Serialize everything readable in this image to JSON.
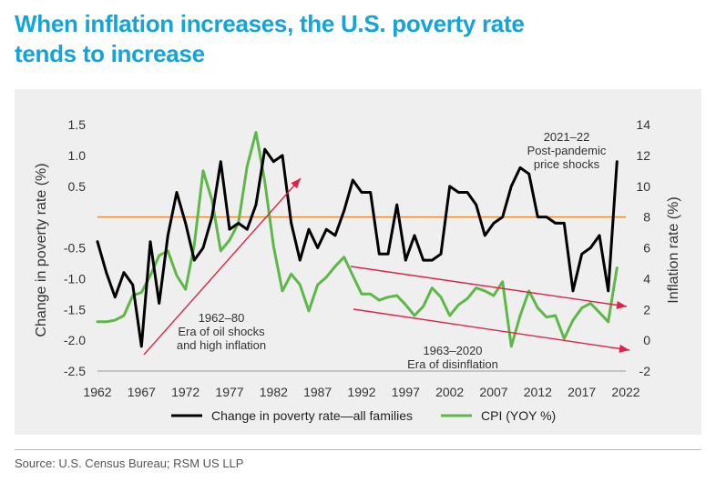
{
  "title_line1": "When inflation increases, the U.S. poverty rate",
  "title_line2": "tends to increase",
  "source": "Source: U.S. Census Bureau; RSM US LLP",
  "colors": {
    "title": "#12A4DB",
    "poverty": "#000000",
    "cpi": "#5DB847",
    "arrow": "#E0224A",
    "reference": "#F08A2C"
  },
  "chart_data": {
    "type": "line",
    "xlabel": "",
    "ylabel": "Change in poverty rate (%)",
    "y2label": "Inflation rate (%)",
    "xlim": [
      1962,
      2022
    ],
    "ylim": [
      -2.5,
      1.5
    ],
    "y2lim": [
      -2,
      14
    ],
    "xticks": [
      "1962",
      "1967",
      "1972",
      "1977",
      "1982",
      "1987",
      "1992",
      "1997",
      "2002",
      "2007",
      "2012",
      "2017",
      "2022"
    ],
    "yticks": [
      "1.5",
      "1.0",
      "0.5",
      "",
      "-0.5",
      "-1.0",
      "-1.5",
      "-2.0",
      "-2.5"
    ],
    "y2ticks": [
      "14",
      "12",
      "10",
      "8",
      "6",
      "4",
      "2",
      "0",
      "-2"
    ],
    "reference_line_y2": 8,
    "legend_position": "bottom",
    "series": [
      {
        "name": "Change in poverty rate—all families",
        "axis": "left",
        "x": [
          1962,
          1963,
          1964,
          1965,
          1966,
          1967,
          1968,
          1969,
          1970,
          1971,
          1972,
          1973,
          1974,
          1975,
          1976,
          1977,
          1978,
          1979,
          1980,
          1981,
          1982,
          1983,
          1984,
          1985,
          1986,
          1987,
          1988,
          1989,
          1990,
          1991,
          1992,
          1993,
          1994,
          1995,
          1996,
          1997,
          1998,
          1999,
          2000,
          2001,
          2002,
          2003,
          2004,
          2005,
          2006,
          2007,
          2008,
          2009,
          2010,
          2011,
          2012,
          2013,
          2014,
          2015,
          2016,
          2017,
          2018,
          2019,
          2020,
          2021
        ],
        "values": [
          -0.4,
          -0.9,
          -1.3,
          -0.9,
          -1.1,
          -2.1,
          -0.4,
          -1.4,
          -0.3,
          0.4,
          -0.1,
          -0.7,
          -0.5,
          0.0,
          0.9,
          -0.2,
          -0.1,
          -0.2,
          0.2,
          1.1,
          0.9,
          1.0,
          -0.1,
          -0.7,
          -0.2,
          -0.5,
          -0.2,
          -0.3,
          0.1,
          0.6,
          0.4,
          0.4,
          -0.6,
          -0.6,
          0.2,
          -0.7,
          -0.3,
          -0.7,
          -0.7,
          -0.6,
          0.5,
          0.4,
          0.4,
          0.2,
          -0.3,
          -0.1,
          0.0,
          0.5,
          0.8,
          0.7,
          0.0,
          0.0,
          -0.1,
          -0.1,
          -1.2,
          -0.6,
          -0.5,
          -0.3,
          -1.2,
          0.9
        ]
      },
      {
        "name": "CPI (YOY %)",
        "axis": "right",
        "x": [
          1962,
          1963,
          1964,
          1965,
          1966,
          1967,
          1968,
          1969,
          1970,
          1971,
          1972,
          1973,
          1974,
          1975,
          1976,
          1977,
          1978,
          1979,
          1980,
          1981,
          1982,
          1983,
          1984,
          1985,
          1986,
          1987,
          1988,
          1989,
          1990,
          1991,
          1992,
          1993,
          1994,
          1995,
          1996,
          1997,
          1998,
          1999,
          2000,
          2001,
          2002,
          2003,
          2004,
          2005,
          2006,
          2007,
          2008,
          2009,
          2010,
          2011,
          2012,
          2013,
          2014,
          2015,
          2016,
          2017,
          2018,
          2019,
          2020,
          2021
        ],
        "values": [
          1.2,
          1.2,
          1.3,
          1.6,
          2.9,
          3.1,
          4.2,
          5.5,
          5.8,
          4.2,
          3.3,
          6.2,
          11.0,
          9.1,
          5.8,
          6.5,
          7.6,
          11.3,
          13.5,
          10.3,
          6.1,
          3.2,
          4.3,
          3.6,
          1.9,
          3.6,
          4.1,
          4.8,
          5.4,
          4.2,
          3.0,
          3.0,
          2.6,
          2.8,
          2.9,
          2.3,
          1.6,
          2.2,
          3.4,
          2.8,
          1.6,
          2.3,
          2.7,
          3.4,
          3.2,
          2.9,
          3.8,
          -0.4,
          1.6,
          3.2,
          2.1,
          1.5,
          1.6,
          0.1,
          1.3,
          2.1,
          2.4,
          1.8,
          1.2,
          4.7
        ]
      }
    ],
    "annotations": [
      {
        "text_lines": [
          "1962–80",
          "Era of oil shocks",
          "and high inflation"
        ]
      },
      {
        "text_lines": [
          "1963–2020",
          "Era of disinflation"
        ]
      },
      {
        "text_lines": [
          "2021–22",
          "Post-pandemic",
          "price shocks"
        ]
      }
    ]
  }
}
